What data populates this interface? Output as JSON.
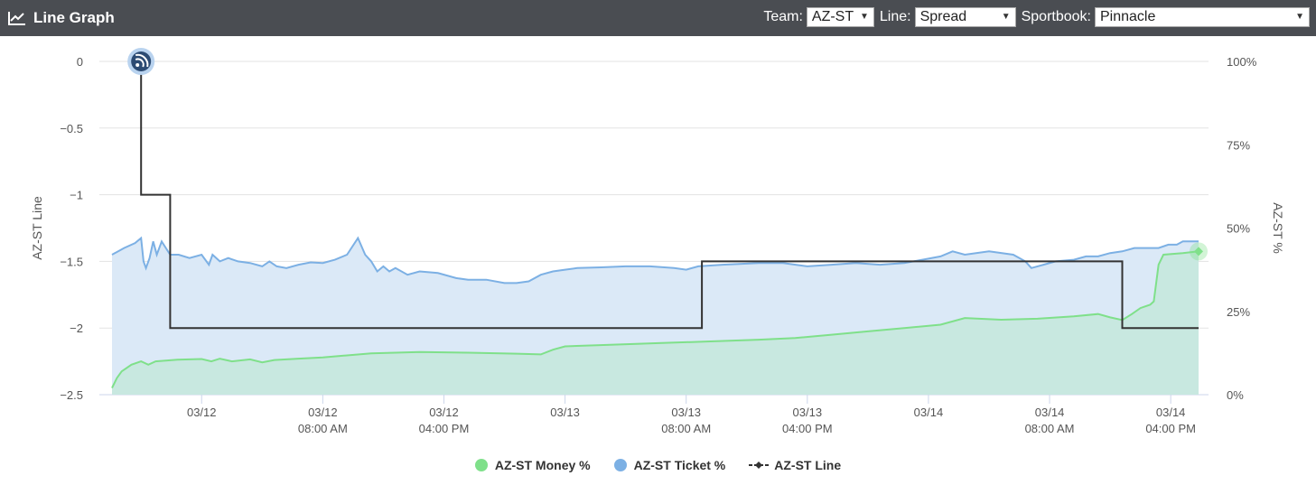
{
  "header": {
    "title": "Line Graph",
    "icon": "line-chart-icon",
    "team_label": "Team:",
    "team_value": "AZ-ST",
    "line_label": "Line:",
    "line_value": "Spread",
    "sportsbook_label": "Sportbook:",
    "sportsbook_value": "Pinnacle"
  },
  "colors": {
    "header_bg": "#4a4d52",
    "money": "#7fe08a",
    "money_fill": "#c8e8e0",
    "ticket": "#7cb0e4",
    "ticket_fill": "#dbe9f7",
    "line": "#333333"
  },
  "chart_data": {
    "type": "line",
    "title": "",
    "ylabel_left": "AZ-ST Line",
    "ylabel_right": "AZ-ST %",
    "ylim_left": [
      -2.5,
      0
    ],
    "ylim_right": [
      0,
      100
    ],
    "yticks_left": [
      "0",
      "−0.5",
      "−1",
      "−1.5",
      "−2",
      "−2.5"
    ],
    "yticks_right": [
      "100%",
      "75%",
      "50%",
      "25%",
      "0%"
    ],
    "xlim_hours": [
      -7.4,
      82.3
    ],
    "x_ticks": [
      {
        "h": 0,
        "l1": "03/12",
        "l2": ""
      },
      {
        "h": 10,
        "l1": "03/12",
        "l2": "08:00 AM"
      },
      {
        "h": 20,
        "l1": "03/12",
        "l2": "04:00 PM"
      },
      {
        "h": 30,
        "l1": "03/13",
        "l2": ""
      },
      {
        "h": 40,
        "l1": "03/13",
        "l2": "08:00 AM"
      },
      {
        "h": 50,
        "l1": "03/13",
        "l2": "04:00 PM"
      },
      {
        "h": 60,
        "l1": "03/14",
        "l2": ""
      },
      {
        "h": 70,
        "l1": "03/14",
        "l2": "08:00 AM"
      },
      {
        "h": 80,
        "l1": "03/14",
        "l2": "04:00 PM"
      }
    ],
    "legend": [
      "AZ-ST Money %",
      "AZ-ST Ticket %",
      "AZ-ST Line"
    ],
    "series": [
      {
        "name": "AZ-ST Money %",
        "axis": "right",
        "points": [
          [
            -7.4,
            2
          ],
          [
            -7.0,
            5
          ],
          [
            -6.6,
            7
          ],
          [
            -5.8,
            9
          ],
          [
            -5.0,
            10
          ],
          [
            -4.4,
            9
          ],
          [
            -3.8,
            10
          ],
          [
            -2,
            10.5
          ],
          [
            0,
            10.7
          ],
          [
            0.8,
            10
          ],
          [
            1.5,
            10.8
          ],
          [
            2.5,
            10
          ],
          [
            4,
            10.6
          ],
          [
            5,
            9.7
          ],
          [
            6,
            10.4
          ],
          [
            8,
            10.8
          ],
          [
            10,
            11.2
          ],
          [
            12,
            11.8
          ],
          [
            14,
            12.4
          ],
          [
            18,
            12.8
          ],
          [
            22,
            12.6
          ],
          [
            26,
            12.3
          ],
          [
            28,
            12.1
          ],
          [
            29,
            13.5
          ],
          [
            30,
            14.5
          ],
          [
            34,
            15
          ],
          [
            38,
            15.5
          ],
          [
            42,
            16
          ],
          [
            46,
            16.5
          ],
          [
            49,
            17
          ],
          [
            52,
            18
          ],
          [
            55,
            19
          ],
          [
            58,
            20
          ],
          [
            61,
            21
          ],
          [
            63,
            23
          ],
          [
            66,
            22.5
          ],
          [
            69,
            22.8
          ],
          [
            72,
            23.5
          ],
          [
            74,
            24.2
          ],
          [
            75,
            23.2
          ],
          [
            76,
            22.4
          ],
          [
            76.8,
            24.2
          ],
          [
            77.5,
            26
          ],
          [
            78.3,
            27
          ],
          [
            78.6,
            28
          ],
          [
            79,
            39
          ],
          [
            79.4,
            42
          ],
          [
            81,
            42.5
          ],
          [
            82.3,
            43
          ]
        ]
      },
      {
        "name": "AZ-ST Ticket %",
        "axis": "right",
        "points": [
          [
            -7.4,
            42
          ],
          [
            -6.4,
            44
          ],
          [
            -5.5,
            45.5
          ],
          [
            -5.0,
            47
          ],
          [
            -4.8,
            40
          ],
          [
            -4.6,
            38
          ],
          [
            -4.3,
            41
          ],
          [
            -4.0,
            46
          ],
          [
            -3.7,
            42
          ],
          [
            -3.3,
            46
          ],
          [
            -2.6,
            42
          ],
          [
            -1.9,
            42
          ],
          [
            -1,
            41
          ],
          [
            0,
            42
          ],
          [
            0.6,
            39
          ],
          [
            0.9,
            42
          ],
          [
            1.5,
            40
          ],
          [
            2.2,
            41
          ],
          [
            3,
            40
          ],
          [
            4,
            39.5
          ],
          [
            5,
            38.5
          ],
          [
            5.6,
            40
          ],
          [
            6.2,
            38.5
          ],
          [
            7,
            38
          ],
          [
            8,
            39
          ],
          [
            9,
            39.7
          ],
          [
            10,
            39.5
          ],
          [
            11,
            40.5
          ],
          [
            12,
            42
          ],
          [
            12.9,
            47
          ],
          [
            13.5,
            42
          ],
          [
            14,
            40
          ],
          [
            14.5,
            37
          ],
          [
            15,
            38.5
          ],
          [
            15.5,
            37
          ],
          [
            16,
            38
          ],
          [
            17,
            36
          ],
          [
            18,
            37
          ],
          [
            19.5,
            36.5
          ],
          [
            21,
            35
          ],
          [
            22,
            34.5
          ],
          [
            23.5,
            34.5
          ],
          [
            25,
            33.5
          ],
          [
            26,
            33.5
          ],
          [
            27,
            34
          ],
          [
            28,
            36
          ],
          [
            29,
            37
          ],
          [
            30,
            37.5
          ],
          [
            31,
            38
          ],
          [
            33,
            38.2
          ],
          [
            35,
            38.5
          ],
          [
            37,
            38.5
          ],
          [
            39,
            38
          ],
          [
            40,
            37.5
          ],
          [
            41,
            38.5
          ],
          [
            43,
            39
          ],
          [
            46,
            39.5
          ],
          [
            48,
            39.5
          ],
          [
            50,
            38.5
          ],
          [
            52,
            39
          ],
          [
            54,
            39.5
          ],
          [
            56,
            39
          ],
          [
            58,
            39.5
          ],
          [
            59.5,
            40.5
          ],
          [
            61,
            41.5
          ],
          [
            62,
            43
          ],
          [
            63,
            42
          ],
          [
            65,
            43
          ],
          [
            67,
            42
          ],
          [
            68,
            40
          ],
          [
            68.5,
            38
          ],
          [
            69.5,
            39
          ],
          [
            70.5,
            40
          ],
          [
            72,
            40.5
          ],
          [
            73,
            41.5
          ],
          [
            74,
            41.5
          ],
          [
            75,
            42.5
          ],
          [
            76,
            43
          ],
          [
            77,
            44
          ],
          [
            78,
            44
          ],
          [
            79,
            44
          ],
          [
            79.8,
            45
          ],
          [
            80.5,
            45
          ],
          [
            81,
            46
          ],
          [
            82.3,
            46
          ]
        ]
      },
      {
        "name": "AZ-ST Line",
        "axis": "left",
        "points": [
          [
            -5.0,
            0
          ],
          [
            -5.0,
            -1
          ],
          [
            -2.6,
            -1
          ],
          [
            -2.6,
            -2
          ],
          [
            41.3,
            -2
          ],
          [
            41.3,
            -1.5
          ],
          [
            76,
            -1.5
          ],
          [
            76,
            -2
          ],
          [
            82.3,
            -2
          ]
        ]
      }
    ]
  }
}
